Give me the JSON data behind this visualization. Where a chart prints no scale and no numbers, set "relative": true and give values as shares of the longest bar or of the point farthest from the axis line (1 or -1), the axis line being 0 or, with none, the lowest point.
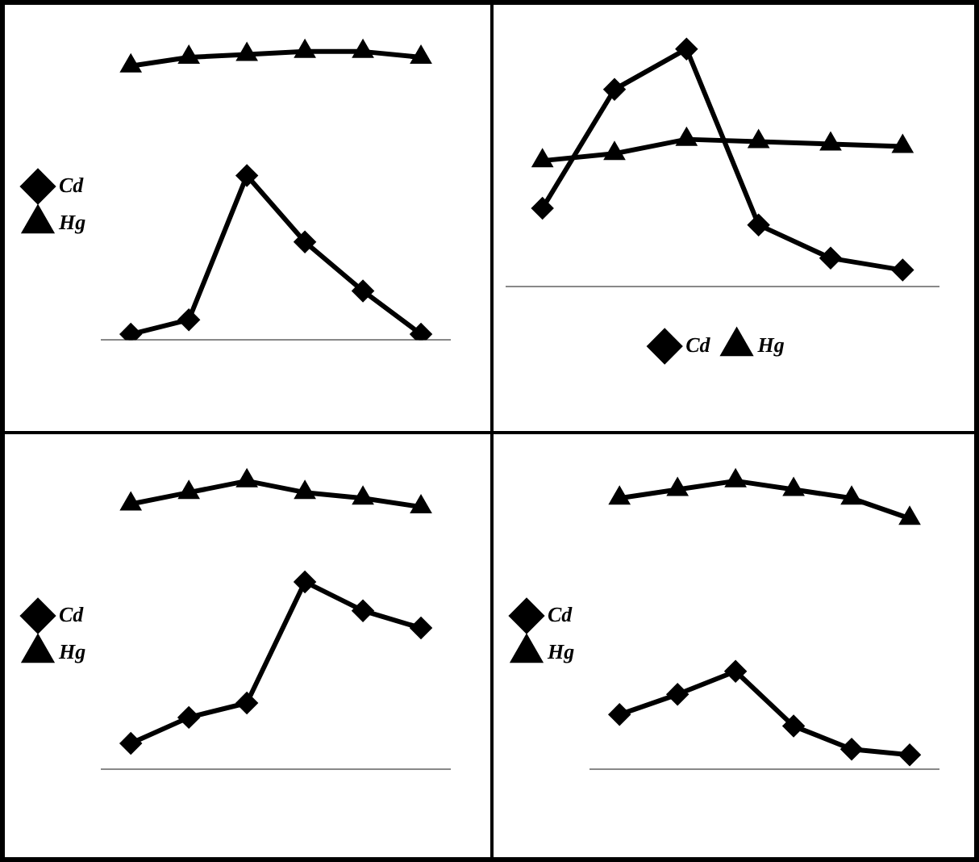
{
  "chart_data": [
    {
      "type": "line",
      "relative": true,
      "categories": [
        null,
        null,
        null,
        null,
        null,
        null
      ],
      "legend": "left",
      "grid": false,
      "series": [
        {
          "name": "Cd",
          "color": "#000000",
          "marker": "diamond",
          "values": [
            0.02,
            0.07,
            0.57,
            0.34,
            0.17,
            0.02
          ]
        },
        {
          "name": "Hg",
          "color": "#000000",
          "marker": "triangle",
          "values": [
            0.95,
            0.98,
            0.99,
            1,
            1,
            0.98
          ]
        }
      ]
    },
    {
      "type": "line",
      "relative": true,
      "categories": [
        null,
        null,
        null,
        null,
        null,
        null
      ],
      "legend": "bottom",
      "grid": false,
      "series": [
        {
          "name": "Cd",
          "color": "#000000",
          "marker": "diamond",
          "values": [
            0.33,
            0.83,
            1,
            0.26,
            0.12,
            0.07
          ]
        },
        {
          "name": "Hg",
          "color": "#000000",
          "marker": "triangle",
          "values": [
            0.53,
            0.56,
            0.62,
            0.61,
            0.6,
            0.59
          ]
        }
      ]
    },
    {
      "type": "line",
      "relative": true,
      "categories": [
        null,
        null,
        null,
        null,
        null,
        null
      ],
      "legend": "left",
      "grid": false,
      "series": [
        {
          "name": "Cd",
          "color": "#000000",
          "marker": "diamond",
          "values": [
            0.09,
            0.18,
            0.23,
            0.65,
            0.55,
            0.49
          ]
        },
        {
          "name": "Hg",
          "color": "#000000",
          "marker": "triangle",
          "values": [
            0.92,
            0.96,
            1,
            0.96,
            0.94,
            0.91
          ]
        }
      ]
    },
    {
      "type": "line",
      "relative": true,
      "categories": [
        null,
        null,
        null,
        null,
        null,
        null
      ],
      "legend": "left",
      "grid": false,
      "series": [
        {
          "name": "Cd",
          "color": "#000000",
          "marker": "diamond",
          "values": [
            0.19,
            0.26,
            0.34,
            0.15,
            0.07,
            0.05
          ]
        },
        {
          "name": "Hg",
          "color": "#000000",
          "marker": "triangle",
          "values": [
            0.94,
            0.97,
            1,
            0.97,
            0.94,
            0.87
          ]
        }
      ]
    }
  ]
}
